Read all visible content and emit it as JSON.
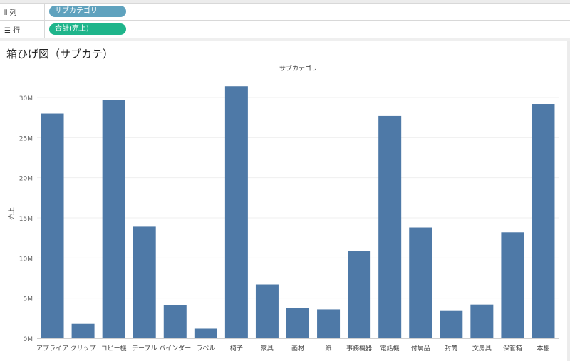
{
  "shelves": {
    "columns": {
      "icon": "columns-icon",
      "label": "列",
      "pill": "サブカテゴリ"
    },
    "rows": {
      "icon": "rows-icon",
      "label": "行",
      "pill": "合計(売上)"
    }
  },
  "sheet": {
    "title": "箱ひげ図（サブカテ）"
  },
  "chart_data": {
    "type": "bar",
    "title": "サブカテゴリ",
    "xlabel": "",
    "ylabel": "売上",
    "categories": [
      "アプライア",
      "クリップ",
      "コピー機",
      "テーブル",
      "バインダー",
      "ラベル",
      "椅子",
      "家具",
      "画材",
      "紙",
      "事務機器",
      "電話機",
      "付属品",
      "封筒",
      "文房具",
      "保管箱",
      "本棚"
    ],
    "values": [
      28.0,
      1.8,
      29.7,
      13.9,
      4.1,
      1.2,
      31.4,
      6.7,
      3.8,
      3.6,
      10.9,
      27.7,
      13.8,
      3.4,
      4.2,
      13.2,
      29.2
    ],
    "value_unit": "M",
    "ylim": [
      0,
      33
    ],
    "yticks": [
      0,
      5,
      10,
      15,
      20,
      25,
      30
    ],
    "ytick_labels": [
      "0M",
      "5M",
      "10M",
      "15M",
      "20M",
      "25M",
      "30M"
    ],
    "grid": true,
    "bar_color": "#4e79a7"
  }
}
